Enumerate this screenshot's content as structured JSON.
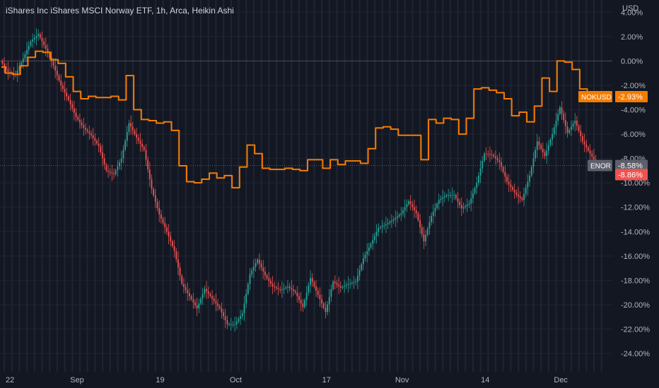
{
  "header": {
    "title": "iShares Inc iShares MSCI Norway ETF, 1h, Arca, Heikin Ashi",
    "currency": "USD"
  },
  "colors": {
    "background": "#131722",
    "grid": "#1f2433",
    "up": "#26a69a",
    "down": "#ef5350",
    "nokusd": "#f57c00",
    "enor_tag": "#5d606b",
    "axis_text": "#b2b5be"
  },
  "chart_data": {
    "type": "line",
    "ylim": [
      -25.5,
      5.0
    ],
    "y_axis_ticks": [
      "4.00%",
      "2.00%",
      "0.00%",
      "-2.00%",
      "-4.00%",
      "-6.00%",
      "-8.00%",
      "-10.00%",
      "-12.00%",
      "-14.00%",
      "-16.00%",
      "-18.00%",
      "-20.00%",
      "-22.00%",
      "-24.00%"
    ],
    "y_axis_tick_values": [
      4,
      2,
      0,
      -2,
      -4,
      -6,
      -8,
      -10,
      -12,
      -14,
      -16,
      -18,
      -20,
      -22,
      -24
    ],
    "x_axis_ticks": [
      "22",
      "Sep",
      "19",
      "Oct",
      "17",
      "Nov",
      "14",
      "Dec"
    ],
    "x_axis_tick_positions": [
      0,
      10,
      21,
      31,
      43,
      53,
      64,
      74
    ],
    "zero_line": 0,
    "series": [
      {
        "name": "NOKUSD",
        "style": "line",
        "points": [
          [
            0,
            -0.5
          ],
          [
            1,
            -1.0
          ],
          [
            2,
            -1.1
          ],
          [
            3,
            -0.4
          ],
          [
            4,
            0.3
          ],
          [
            5,
            0.8
          ],
          [
            6,
            0.7
          ],
          [
            7,
            0.1
          ],
          [
            8,
            -0.2
          ],
          [
            9,
            -1.3
          ],
          [
            10,
            -2.5
          ],
          [
            11,
            -3.1
          ],
          [
            12,
            -2.9
          ],
          [
            13,
            -3.0
          ],
          [
            14,
            -3.0
          ],
          [
            15,
            -2.9
          ],
          [
            16,
            -3.2
          ],
          [
            17,
            -1.2
          ],
          [
            18,
            -4.0
          ],
          [
            19,
            -4.8
          ],
          [
            20,
            -4.9
          ],
          [
            21,
            -5.1
          ],
          [
            22,
            -5.0
          ],
          [
            23,
            -5.7
          ],
          [
            24,
            -8.6
          ],
          [
            25,
            -9.9
          ],
          [
            26,
            -10.0
          ],
          [
            27,
            -9.7
          ],
          [
            28,
            -9.2
          ],
          [
            29,
            -9.6
          ],
          [
            30,
            -9.4
          ],
          [
            31,
            -10.4
          ],
          [
            32,
            -8.7
          ],
          [
            33,
            -6.9
          ],
          [
            34,
            -7.6
          ],
          [
            35,
            -8.8
          ],
          [
            36,
            -8.9
          ],
          [
            37,
            -8.9
          ],
          [
            38,
            -8.8
          ],
          [
            39,
            -8.9
          ],
          [
            40,
            -9.0
          ],
          [
            41,
            -8.1
          ],
          [
            42,
            -8.1
          ],
          [
            43,
            -8.8
          ],
          [
            44,
            -8.1
          ],
          [
            45,
            -8.5
          ],
          [
            46,
            -8.2
          ],
          [
            47,
            -8.2
          ],
          [
            48,
            -8.4
          ],
          [
            49,
            -7.2
          ],
          [
            50,
            -5.5
          ],
          [
            51,
            -5.4
          ],
          [
            52,
            -5.6
          ],
          [
            53,
            -6.1
          ],
          [
            54,
            -6.1
          ],
          [
            55,
            -6.1
          ],
          [
            56,
            -8.1
          ],
          [
            57,
            -4.8
          ],
          [
            58,
            -5.1
          ],
          [
            59,
            -4.7
          ],
          [
            60,
            -4.8
          ],
          [
            61,
            -6.0
          ],
          [
            62,
            -4.7
          ],
          [
            63,
            -2.3
          ],
          [
            64,
            -2.2
          ],
          [
            65,
            -2.4
          ],
          [
            66,
            -2.6
          ],
          [
            67,
            -3.1
          ],
          [
            68,
            -4.5
          ],
          [
            69,
            -4.2
          ],
          [
            70,
            -5.0
          ],
          [
            71,
            -3.7
          ],
          [
            72,
            -1.4
          ],
          [
            73,
            -2.5
          ],
          [
            74,
            0.0
          ],
          [
            75,
            -0.1
          ],
          [
            76,
            -0.7
          ],
          [
            77,
            -2.3
          ],
          [
            78,
            -2.9
          ],
          [
            79,
            -2.93
          ]
        ]
      },
      {
        "name": "ENOR",
        "style": "heikin-ashi",
        "points": [
          [
            0,
            0.0
          ],
          [
            1,
            -0.9
          ],
          [
            2,
            -1.1
          ],
          [
            3,
            0.2
          ],
          [
            4,
            1.6
          ],
          [
            5,
            2.2
          ],
          [
            6,
            1.0
          ],
          [
            7,
            -0.4
          ],
          [
            8,
            -2.0
          ],
          [
            9,
            -3.2
          ],
          [
            10,
            -4.6
          ],
          [
            11,
            -5.5
          ],
          [
            12,
            -6.1
          ],
          [
            13,
            -7.0
          ],
          [
            14,
            -9.0
          ],
          [
            15,
            -9.3
          ],
          [
            16,
            -8.0
          ],
          [
            17,
            -5.1
          ],
          [
            18,
            -6.3
          ],
          [
            19,
            -7.3
          ],
          [
            20,
            -10.5
          ],
          [
            21,
            -12.6
          ],
          [
            22,
            -14.0
          ],
          [
            23,
            -15.6
          ],
          [
            24,
            -18.3
          ],
          [
            25,
            -19.3
          ],
          [
            26,
            -20.3
          ],
          [
            27,
            -18.7
          ],
          [
            28,
            -19.5
          ],
          [
            29,
            -20.3
          ],
          [
            30,
            -21.6
          ],
          [
            31,
            -21.6
          ],
          [
            32,
            -20.7
          ],
          [
            33,
            -17.5
          ],
          [
            34,
            -16.3
          ],
          [
            35,
            -17.6
          ],
          [
            36,
            -18.5
          ],
          [
            37,
            -18.8
          ],
          [
            38,
            -18.5
          ],
          [
            39,
            -19.0
          ],
          [
            40,
            -20.2
          ],
          [
            41,
            -17.8
          ],
          [
            42,
            -19.2
          ],
          [
            43,
            -20.6
          ],
          [
            44,
            -18.1
          ],
          [
            45,
            -18.6
          ],
          [
            46,
            -18.3
          ],
          [
            47,
            -18.1
          ],
          [
            48,
            -16.2
          ],
          [
            49,
            -15.0
          ],
          [
            50,
            -13.7
          ],
          [
            51,
            -13.4
          ],
          [
            52,
            -13.0
          ],
          [
            53,
            -12.5
          ],
          [
            54,
            -11.5
          ],
          [
            55,
            -12.5
          ],
          [
            56,
            -14.8
          ],
          [
            57,
            -12.7
          ],
          [
            58,
            -11.4
          ],
          [
            59,
            -11.0
          ],
          [
            60,
            -11.0
          ],
          [
            61,
            -12.1
          ],
          [
            62,
            -11.7
          ],
          [
            63,
            -10.0
          ],
          [
            64,
            -7.6
          ],
          [
            65,
            -7.7
          ],
          [
            66,
            -8.3
          ],
          [
            67,
            -9.9
          ],
          [
            68,
            -10.8
          ],
          [
            69,
            -11.4
          ],
          [
            70,
            -9.4
          ],
          [
            71,
            -6.6
          ],
          [
            72,
            -7.8
          ],
          [
            73,
            -6.0
          ],
          [
            74,
            -3.8
          ],
          [
            75,
            -5.9
          ],
          [
            76,
            -4.9
          ],
          [
            77,
            -6.6
          ],
          [
            78,
            -7.6
          ],
          [
            79,
            -8.58
          ]
        ]
      }
    ],
    "labels": [
      {
        "series": "NOKUSD",
        "text": "NOKUSD",
        "value_text": "-2.93%",
        "value": -2.93
      },
      {
        "series": "ENOR",
        "text": "ENOR",
        "value_text": "-8.58%",
        "value": -8.58
      },
      {
        "series": "ENOR",
        "text": "",
        "value_text": "-8.86%",
        "value": -8.86
      }
    ]
  }
}
